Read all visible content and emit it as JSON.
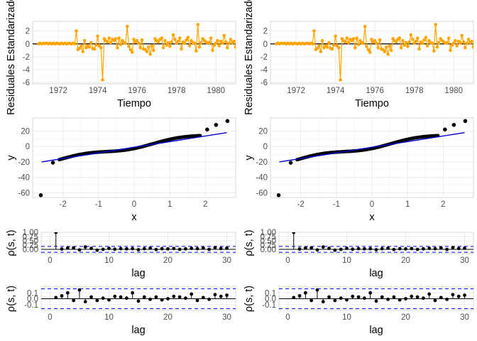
{
  "colors": {
    "residual_series": "#ffa500",
    "qq_points": "#000000",
    "qq_line": "#0000cd",
    "acf_bars": "#000000",
    "conf_band": "#0000ff",
    "grid": "#ebebeb",
    "panel_border": "#d9d9d9"
  },
  "chart_data": [
    {
      "id": "residuals-left",
      "type": "line",
      "xlabel": "Tiempo",
      "ylabel": "Residuales Estandarizados",
      "x_ticks": [
        1972,
        1974,
        1976,
        1978,
        1980
      ],
      "y_ticks": [
        -6,
        -4,
        -2,
        0,
        2
      ],
      "xlim": [
        1970.7,
        1981.0
      ],
      "ylim": [
        -6.2,
        3.5
      ],
      "reference_line_y": 0,
      "x_start": 1971.0,
      "x_step": 0.0833,
      "values": [
        0,
        0.1,
        0,
        0.1,
        0.05,
        0.1,
        0,
        0.1,
        0,
        0.1,
        0,
        0.1,
        0.05,
        0,
        0.1,
        0,
        0.1,
        0,
        0.05,
        0.1,
        0,
        0.1,
        0,
        2.0,
        -0.9,
        -0.7,
        -0.3,
        -1.2,
        0.5,
        -0.6,
        -0.3,
        -0.5,
        0.2,
        -0.7,
        -0.8,
        -0.2,
        1.2,
        -0.3,
        -0.6,
        -5.6,
        0.8,
        0.5,
        0.3,
        0.9,
        0.2,
        0.7,
        0.5,
        0.8,
        -0.6,
        0.9,
        -0.1,
        0.5,
        0.2,
        0.1,
        2.7,
        -0.4,
        -0.9,
        -1.3,
        0.7,
        0.3,
        0.5,
        0.1,
        -0.6,
        0.6,
        -0.8,
        -0.9,
        -1.2,
        -0.5,
        -1.6,
        -0.3,
        -1.0,
        0.8,
        0.5,
        0.3,
        0.7,
        0.9,
        -0.6,
        0.5,
        -0.2,
        0.2,
        -0.4,
        0.3,
        1.4,
        0.7,
        0.1,
        0.4,
        0.9,
        -0.8,
        0.3,
        0.1,
        0.6,
        1.0,
        -0.3,
        0.5,
        0.2,
        0.1,
        -1.1,
        3.0,
        -0.5,
        0.2,
        0.8,
        0.5,
        0.3,
        0.1,
        0.2,
        0.9,
        -1.0,
        -0.2,
        0.1,
        0.5,
        -0.3,
        0.4,
        0.1,
        1.3,
        0.3,
        -0.6,
        0.1,
        0.7,
        0.2,
        0.4,
        -0.5,
        0.8,
        0.6,
        0.9,
        0.7,
        0.8
      ],
      "extra_values": [
        0.3,
        -0.7,
        -0.9,
        -0.5,
        0.2,
        -1.3,
        -0.4,
        0.5
      ]
    },
    {
      "id": "residuals-right",
      "type": "line",
      "xlabel": "Tiempo",
      "ylabel": "Residuales Estandarizados",
      "x_ticks": [
        1972,
        1974,
        1976,
        1978,
        1980
      ],
      "y_ticks": [
        -6,
        -4,
        -2,
        0,
        2
      ],
      "xlim": [
        1970.7,
        1981.0
      ],
      "ylim": [
        -6.2,
        3.5
      ],
      "reference_line_y": 0,
      "same_as": "residuals-left"
    },
    {
      "id": "qq-left",
      "type": "scatter",
      "xlabel": "x",
      "ylabel": "y",
      "x_ticks": [
        -2,
        -1,
        0,
        1,
        2
      ],
      "y_ticks": [
        -60,
        -40,
        -20,
        0,
        20
      ],
      "xlim": [
        -2.85,
        2.85
      ],
      "ylim": [
        -66,
        37
      ],
      "reference_line": {
        "x": [
          -2.6,
          2.6
        ],
        "y": [
          -20,
          18
        ]
      },
      "outliers": [
        {
          "x": -2.62,
          "y": -63
        },
        {
          "x": -2.28,
          "y": -21
        },
        {
          "x": 2.05,
          "y": 22
        },
        {
          "x": 2.3,
          "y": 28
        },
        {
          "x": 2.62,
          "y": 33
        }
      ],
      "body_range": {
        "x": [
          -2.1,
          1.85
        ],
        "y": [
          -17,
          14
        ]
      }
    },
    {
      "id": "qq-right",
      "type": "scatter",
      "xlabel": "x",
      "ylabel": "y",
      "x_ticks": [
        -2,
        -1,
        0,
        1,
        2
      ],
      "y_ticks": [
        -60,
        -40,
        -20,
        0,
        20
      ],
      "xlim": [
        -2.85,
        2.85
      ],
      "ylim": [
        -66,
        37
      ],
      "same_as": "qq-left"
    },
    {
      "id": "acf-left",
      "type": "bar",
      "xlabel": "lag",
      "ylabel": "ρ(s, t)",
      "x_ticks": [
        0,
        10,
        20,
        30
      ],
      "y_ticks": [
        1.0,
        0.75,
        0.5,
        0.25,
        0.0
      ],
      "y_tick_labels": [
        "1.00",
        "0.75",
        "0.50",
        "0.25",
        "0.00"
      ],
      "xlim": [
        -1.5,
        31.5
      ],
      "ylim": [
        -0.25,
        1.0
      ],
      "conf_band": 0.17,
      "lags": [
        1,
        2,
        3,
        4,
        5,
        6,
        7,
        8,
        9,
        10,
        11,
        12,
        13,
        14,
        15,
        16,
        17,
        18,
        19,
        20,
        21,
        22,
        23,
        24,
        25,
        26,
        27,
        28,
        29,
        30
      ],
      "values": [
        1.0,
        0.02,
        0.08,
        0.09,
        -0.03,
        0.14,
        0.06,
        -0.05,
        0.0,
        0.06,
        0.01,
        0.04,
        0.03,
        0.04,
        -0.02,
        0.04,
        0.07,
        -0.01,
        0.04,
        0.03,
        0.05,
        0.0,
        0.03,
        0.06,
        0.04,
        0.08,
        0.0,
        0.1,
        0.05,
        0.07
      ]
    },
    {
      "id": "acf-right",
      "type": "bar",
      "xlabel": "lag",
      "ylabel": "ρ(s, t)",
      "x_ticks": [
        0,
        10,
        20,
        30
      ],
      "y_ticks": [
        1.0,
        0.75,
        0.5,
        0.25,
        0.0
      ],
      "y_tick_labels": [
        "1.00",
        "0.75",
        "0.50",
        "0.25",
        "0.00"
      ],
      "xlim": [
        -1.5,
        31.5
      ],
      "ylim": [
        -0.25,
        1.0
      ],
      "conf_band": 0.17,
      "same_as": "acf-left"
    },
    {
      "id": "pacf-left",
      "type": "bar",
      "xlabel": "lag",
      "ylabel": "ρ(s, t)",
      "x_ticks": [
        0,
        10,
        20,
        30
      ],
      "y_ticks": [
        0.1,
        0.0,
        -0.1
      ],
      "y_tick_labels": [
        "0.1",
        "0.0",
        "-0.1"
      ],
      "xlim": [
        -1.5,
        31.5
      ],
      "ylim": [
        -0.2,
        0.2
      ],
      "conf_band": 0.17,
      "lags": [
        1,
        2,
        3,
        4,
        5,
        6,
        7,
        8,
        9,
        10,
        11,
        12,
        13,
        14,
        15,
        16,
        17,
        18,
        19,
        20,
        21,
        22,
        23,
        24,
        25,
        26,
        27,
        28,
        29,
        30
      ],
      "values": [
        0.02,
        0.05,
        0.1,
        -0.03,
        0.15,
        -0.05,
        0.03,
        -0.03,
        0.01,
        -0.02,
        0.04,
        0.03,
        0.01,
        0.1,
        -0.04,
        0.03,
        -0.01,
        0.03,
        -0.02,
        0.0,
        0.04,
        0.03,
        0.01,
        0.08,
        -0.03,
        0.02,
        -0.01,
        0.07,
        0.04,
        0.06
      ]
    },
    {
      "id": "pacf-right",
      "type": "bar",
      "xlabel": "lag",
      "ylabel": "ρ(s, t)",
      "x_ticks": [
        0,
        10,
        20,
        30
      ],
      "y_ticks": [
        0.1,
        0.0,
        -0.1
      ],
      "y_tick_labels": [
        "0.1",
        "0.0",
        "-0.1"
      ],
      "xlim": [
        -1.5,
        31.5
      ],
      "ylim": [
        -0.2,
        0.2
      ],
      "conf_band": 0.17,
      "same_as": "pacf-left"
    }
  ]
}
